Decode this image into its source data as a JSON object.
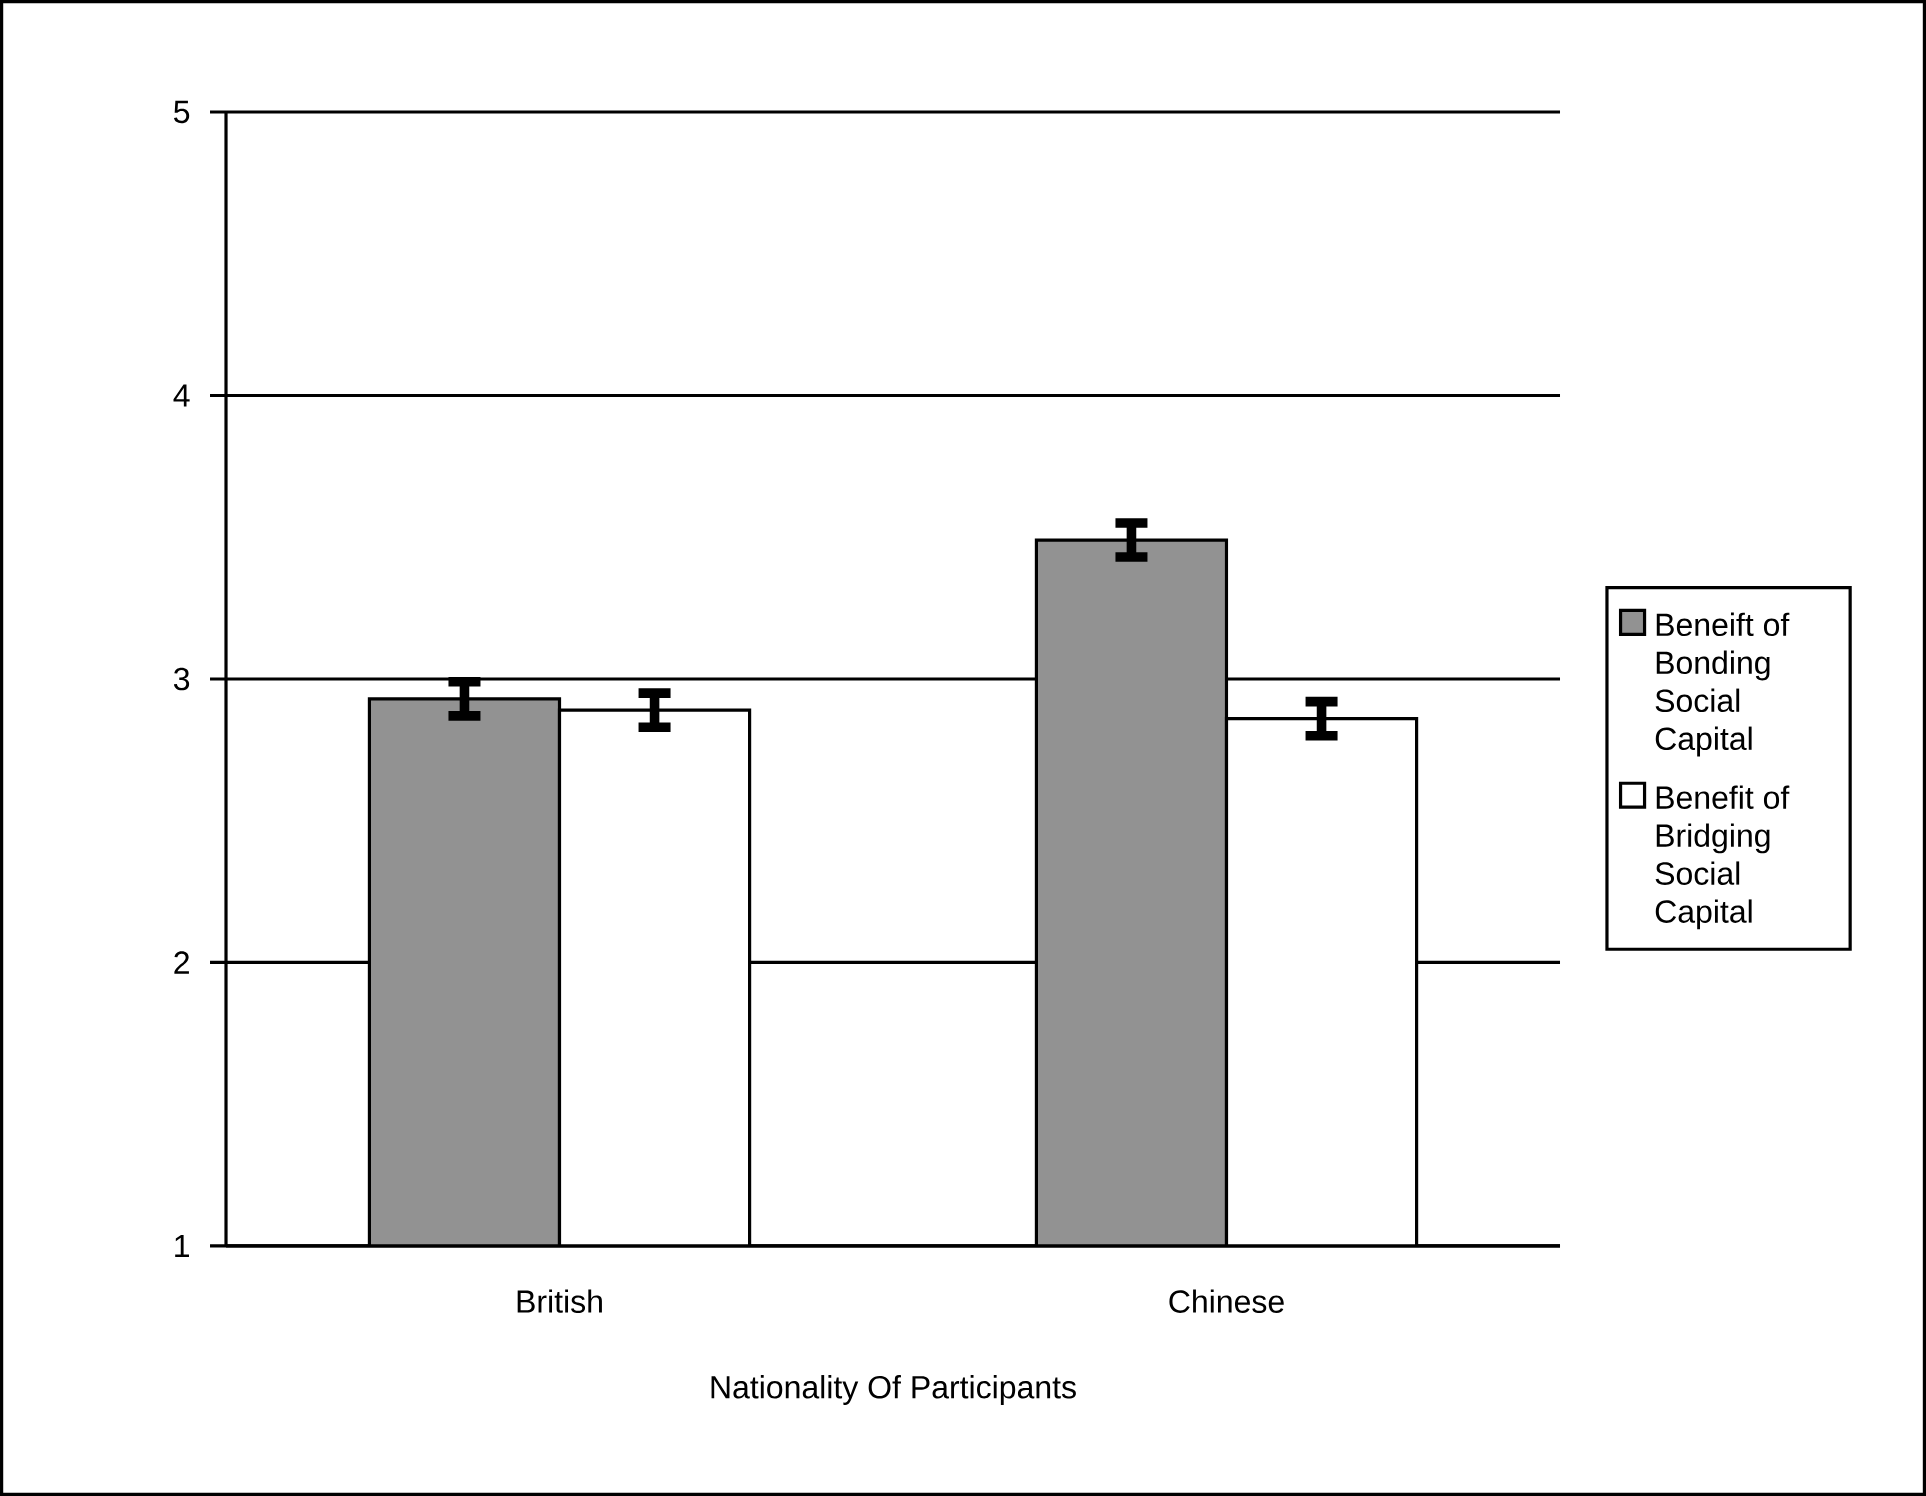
{
  "chart_data": {
    "type": "bar",
    "xlabel": "Nationality Of Participants",
    "categories": [
      "British",
      "Chinese"
    ],
    "series": [
      {
        "name": "Beneift of Bonding Social Capital",
        "color": "#929292",
        "values": [
          2.93,
          3.49
        ],
        "errors": [
          0.06,
          0.06
        ]
      },
      {
        "name": "Benefit of Bridging Social Capital",
        "color": "#ffffff",
        "values": [
          2.89,
          2.86
        ],
        "errors": [
          0.06,
          0.06
        ]
      }
    ],
    "ylim": [
      1,
      5
    ],
    "yticks": [
      1,
      2,
      3,
      4,
      5
    ],
    "grid": "y",
    "legend": "right"
  }
}
